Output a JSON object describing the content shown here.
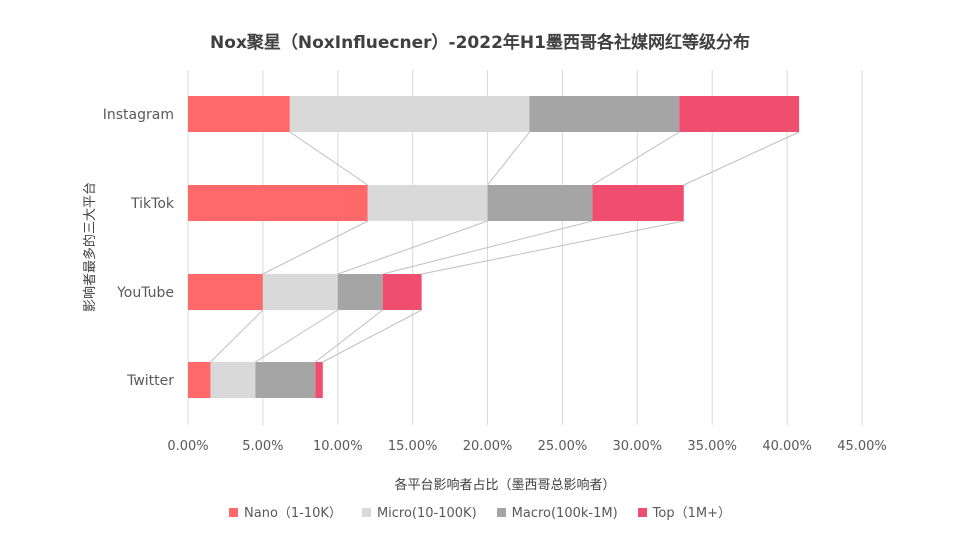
{
  "chart_data": {
    "type": "bar",
    "orientation": "horizontal",
    "stacked": true,
    "title": "Nox聚星（NoxInfluecner）-2022年H1墨西哥各社媒网红等级分布",
    "xlabel": "各平台影响者占比（墨西哥总影响者）",
    "ylabel": "影响者最多的三大平台",
    "categories": [
      "Instagram",
      "TikTok",
      "YouTube",
      "Twitter"
    ],
    "series": [
      {
        "name": "Nano（1-10K）",
        "color": "#ff6969",
        "values": [
          6.8,
          12.0,
          5.0,
          1.5
        ]
      },
      {
        "name": "Micro(10-100K)",
        "color": "#d9d9d9",
        "values": [
          16.0,
          8.0,
          5.0,
          3.0
        ]
      },
      {
        "name": "Macro(100k-1M)",
        "color": "#a5a5a5",
        "values": [
          10.0,
          7.0,
          3.0,
          4.0
        ]
      },
      {
        "name": "Top（1M+）",
        "color": "#f04e6e",
        "values": [
          8.0,
          6.1,
          2.6,
          0.5
        ]
      }
    ],
    "xlim": [
      0,
      45
    ],
    "xticks": [
      "0.00%",
      "5.00%",
      "10.00%",
      "15.00%",
      "20.00%",
      "25.00%",
      "30.00%",
      "35.00%",
      "40.00%",
      "45.00%"
    ],
    "grid": "vertical",
    "series_lines": true,
    "legend_position": "bottom"
  }
}
